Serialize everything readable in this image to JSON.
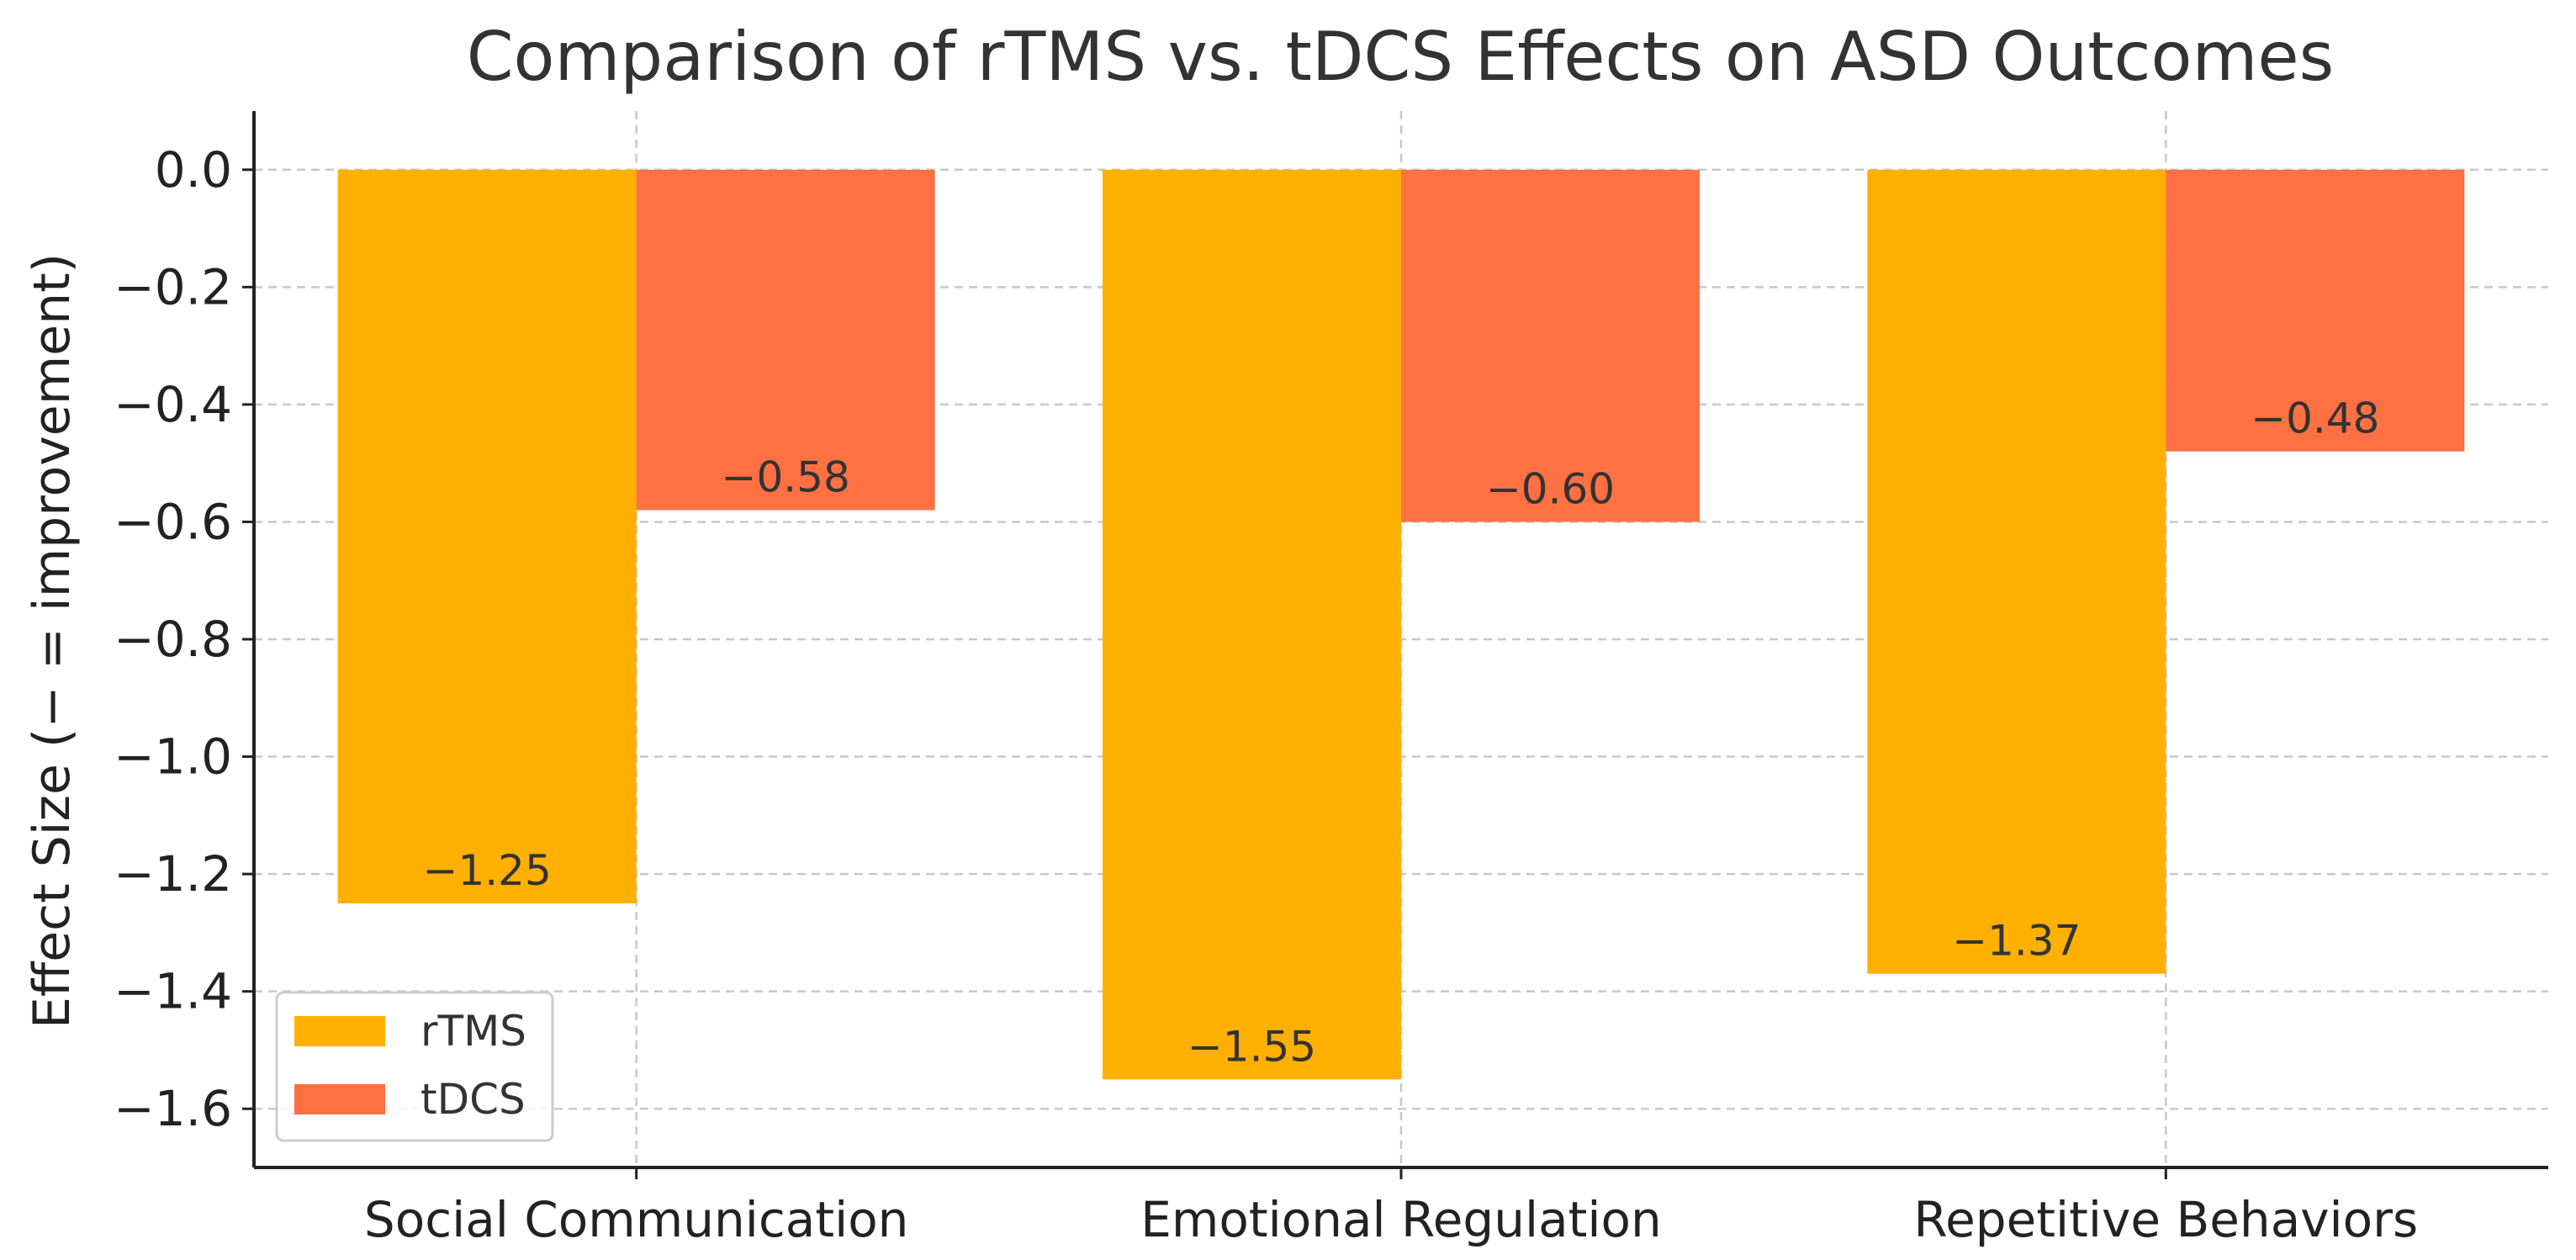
{
  "chart_data": {
    "type": "bar",
    "title": "Comparison of rTMS vs. tDCS Effects on ASD Outcomes",
    "xlabel": "",
    "ylabel": "Effect Size (− = improvement)",
    "categories": [
      "Social Communication",
      "Emotional Regulation",
      "Repetitive Behaviors"
    ],
    "series": [
      {
        "name": "rTMS",
        "color": "#FFB000",
        "values": [
          -1.25,
          -1.55,
          -1.37
        ],
        "labels": [
          "−1.25",
          "−1.55",
          "−1.37"
        ]
      },
      {
        "name": "tDCS",
        "color": "#FF7043",
        "values": [
          -0.58,
          -0.6,
          -0.48
        ],
        "labels": [
          "−0.58",
          "−0.60",
          "−0.48"
        ]
      }
    ],
    "ylim": [
      -1.7,
      0.1
    ],
    "yticks": [
      0.0,
      -0.2,
      -0.4,
      -0.6,
      -0.8,
      -1.0,
      -1.2,
      -1.4,
      -1.6
    ],
    "ytick_labels": [
      "0.0",
      "−0.2",
      "−0.4",
      "−0.6",
      "−0.8",
      "−1.0",
      "−1.2",
      "−1.4",
      "−1.6"
    ],
    "grid": true,
    "legend_position": "bottom-left"
  }
}
